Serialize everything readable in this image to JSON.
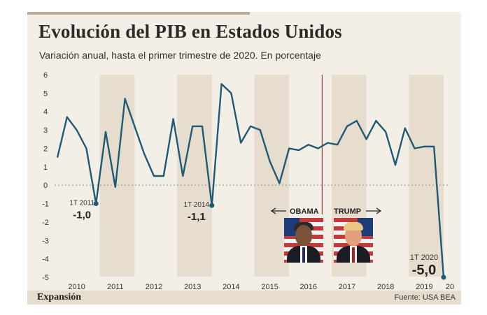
{
  "title": "Evolución del PIB en Estados Unidos",
  "subtitle": "Variación anual, hasta el primer trimestre de 2020. En porcentaje",
  "brand": "Expansión",
  "source": "Fuente: USA BEA",
  "colors": {
    "line": "#1f5a74",
    "band": "#e6ddcf",
    "background": "#f4efe6",
    "divider": "#9e3a33"
  },
  "presidents": {
    "obama": "OBAMA",
    "trump": "TRUMP"
  },
  "annotations": [
    {
      "period": "1T 2011",
      "value": "-1,0"
    },
    {
      "period": "1T 2014",
      "value": "-1,1"
    },
    {
      "period": "1T 2020",
      "value": "-5,0"
    }
  ],
  "chart_data": {
    "type": "line",
    "title": "Evolución del PIB en Estados Unidos",
    "subtitle": "Variación anual, hasta el primer trimestre de 2020. En porcentaje",
    "xlabel": "",
    "ylabel": "",
    "ylim": [
      -5,
      6
    ],
    "yticks": [
      6,
      5,
      4,
      3,
      2,
      1,
      0,
      -1,
      -2,
      -3,
      -4,
      -5
    ],
    "years": [
      "2010",
      "2011",
      "2012",
      "2013",
      "2014",
      "2015",
      "2016",
      "2017",
      "2018",
      "2019",
      "20"
    ],
    "grid": false,
    "series": [
      {
        "values": [
          1.5,
          3.7,
          3.0,
          2.0,
          -1.0,
          2.9,
          -0.1,
          4.7,
          3.2,
          1.7,
          0.5,
          0.5,
          3.6,
          0.5,
          3.2,
          3.2,
          -1.1,
          5.5,
          5.0,
          2.3,
          3.2,
          3.0,
          1.3,
          0.1,
          2.0,
          1.9,
          2.2,
          2.0,
          2.3,
          2.2,
          3.2,
          3.5,
          2.5,
          3.5,
          2.9,
          1.1,
          3.1,
          2.0,
          2.1,
          2.1,
          -5.0
        ]
      }
    ]
  }
}
